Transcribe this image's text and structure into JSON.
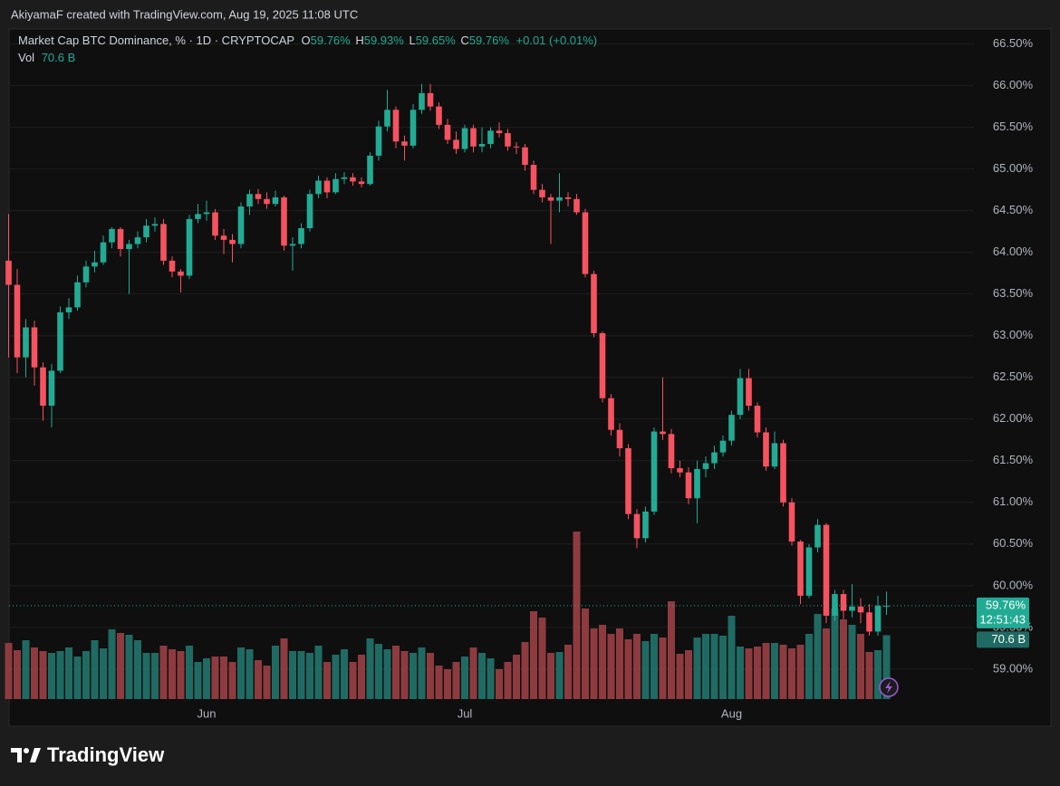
{
  "header": {
    "attribution": "AkiyamaF created with TradingView.com, Aug 19, 2025 11:08 UTC"
  },
  "footer": {
    "brand": "TradingView"
  },
  "chart_data": {
    "type": "candlestick",
    "title": "Market Cap BTC Dominance, % · 1D · CRYPTOCAP",
    "legend": {
      "o_label": "O",
      "o": "59.76%",
      "h_label": "H",
      "h": "59.93%",
      "l_label": "L",
      "l": "59.65%",
      "c_label": "C",
      "c": "59.76%",
      "change": "+0.01 (+0.01%)",
      "vol_label": "Vol",
      "vol": "70.6 B"
    },
    "last_price_label": "59.76%",
    "countdown": "12:51:43",
    "volume_tag": "70.6 B",
    "categories": [
      null,
      null,
      null,
      null,
      null,
      null,
      null,
      null,
      null,
      null,
      null,
      null,
      null,
      null,
      null,
      null,
      null,
      null,
      null,
      null,
      null,
      null,
      null,
      "Jun",
      null,
      null,
      null,
      null,
      null,
      null,
      null,
      null,
      null,
      null,
      null,
      null,
      null,
      null,
      null,
      null,
      null,
      null,
      null,
      null,
      null,
      null,
      null,
      null,
      null,
      null,
      null,
      null,
      null,
      "Jul",
      null,
      null,
      null,
      null,
      null,
      null,
      null,
      null,
      null,
      null,
      null,
      null,
      null,
      null,
      null,
      null,
      null,
      null,
      null,
      null,
      null,
      null,
      null,
      null,
      null,
      null,
      null,
      null,
      null,
      null,
      "Aug",
      null,
      null,
      null,
      null,
      null,
      null,
      null,
      null,
      null,
      null,
      null,
      null,
      null,
      null,
      null,
      null,
      null,
      null
    ],
    "open": [
      63.9,
      63.61,
      62.74,
      63.1,
      62.62,
      62.16,
      62.58,
      63.28,
      63.34,
      63.64,
      63.83,
      63.88,
      64.12,
      64.28,
      64.04,
      64.1,
      64.18,
      64.32,
      64.34,
      63.9,
      63.77,
      63.72,
      64.4,
      64.46,
      64.48,
      64.2,
      64.15,
      64.1,
      64.55,
      64.7,
      64.64,
      64.58,
      64.66,
      64.08,
      64.1,
      64.29,
      64.7,
      64.86,
      64.72,
      64.88,
      64.9,
      64.85,
      64.82,
      65.16,
      65.51,
      65.71,
      65.33,
      65.28,
      65.71,
      65.91,
      65.75,
      65.53,
      65.35,
      65.24,
      65.49,
      65.27,
      65.3,
      65.46,
      65.43,
      65.27,
      65.26,
      65.05,
      64.75,
      64.66,
      64.62,
      64.66,
      64.64,
      64.48,
      63.74,
      63.03,
      62.25,
      61.87,
      61.65,
      60.86,
      60.57,
      60.89,
      61.85,
      61.82,
      61.41,
      61.36,
      61.05,
      61.4,
      61.47,
      61.6,
      61.74,
      62.05,
      62.49,
      62.16,
      61.84,
      61.43,
      61.71,
      61.0,
      60.53,
      59.88,
      60.46,
      60.73,
      59.64,
      59.9,
      59.7,
      59.75,
      59.68,
      59.45,
      59.76
    ],
    "high": [
      64.46,
      63.8,
      63.2,
      63.18,
      62.68,
      62.66,
      63.35,
      63.45,
      63.72,
      63.9,
      64.02,
      64.2,
      64.3,
      64.3,
      64.15,
      64.25,
      64.4,
      64.42,
      64.4,
      63.95,
      63.8,
      64.45,
      64.58,
      64.62,
      64.52,
      64.28,
      64.22,
      64.6,
      64.75,
      64.76,
      64.72,
      64.74,
      64.68,
      64.18,
      64.35,
      64.75,
      64.92,
      64.9,
      64.95,
      64.96,
      64.95,
      64.9,
      65.2,
      65.58,
      65.95,
      65.75,
      65.4,
      65.78,
      66.02,
      66.02,
      65.8,
      65.6,
      65.45,
      65.53,
      65.53,
      65.5,
      65.5,
      65.56,
      65.48,
      65.32,
      65.3,
      65.1,
      64.82,
      64.7,
      64.95,
      64.72,
      64.7,
      64.52,
      63.78,
      63.05,
      62.3,
      61.95,
      61.7,
      60.92,
      60.95,
      61.9,
      62.5,
      61.88,
      61.5,
      61.42,
      61.5,
      61.55,
      61.68,
      61.8,
      62.1,
      62.6,
      62.6,
      62.2,
      61.9,
      61.85,
      61.75,
      61.05,
      60.55,
      60.5,
      60.8,
      60.75,
      59.95,
      59.95,
      60.02,
      59.85,
      59.78,
      59.88,
      59.93
    ],
    "low": [
      62.74,
      62.55,
      62.5,
      62.4,
      61.98,
      61.9,
      62.55,
      63.2,
      63.3,
      63.58,
      63.76,
      63.85,
      64.05,
      63.95,
      63.5,
      64.05,
      64.12,
      64.25,
      63.85,
      63.7,
      63.52,
      63.68,
      64.35,
      64.38,
      64.15,
      63.98,
      63.88,
      64.05,
      64.45,
      64.58,
      64.52,
      64.55,
      64.02,
      63.78,
      64.05,
      64.25,
      64.65,
      64.65,
      64.7,
      64.82,
      64.8,
      64.78,
      64.8,
      65.1,
      65.45,
      65.25,
      65.1,
      65.25,
      65.66,
      65.7,
      65.48,
      65.3,
      65.18,
      65.2,
      65.2,
      65.2,
      65.25,
      65.38,
      65.22,
      65.18,
      64.98,
      64.7,
      64.6,
      64.1,
      64.48,
      64.55,
      64.45,
      63.7,
      62.98,
      62.2,
      61.8,
      61.55,
      60.8,
      60.45,
      60.52,
      60.85,
      61.75,
      61.35,
      61.3,
      60.98,
      60.75,
      61.3,
      61.4,
      61.55,
      61.68,
      62.0,
      62.1,
      61.78,
      61.38,
      61.4,
      60.95,
      60.48,
      59.78,
      59.85,
      60.4,
      59.55,
      59.58,
      59.6,
      59.62,
      59.55,
      59.4,
      59.4,
      59.65
    ],
    "close": [
      63.61,
      62.74,
      63.1,
      62.62,
      62.16,
      62.58,
      63.28,
      63.34,
      63.64,
      63.83,
      63.88,
      64.12,
      64.28,
      64.04,
      64.1,
      64.18,
      64.32,
      64.34,
      63.9,
      63.77,
      63.72,
      64.4,
      64.46,
      64.48,
      64.2,
      64.15,
      64.1,
      64.55,
      64.7,
      64.64,
      64.58,
      64.66,
      64.08,
      64.1,
      64.29,
      64.7,
      64.86,
      64.72,
      64.88,
      64.9,
      64.85,
      64.82,
      65.16,
      65.51,
      65.71,
      65.33,
      65.28,
      65.71,
      65.91,
      65.75,
      65.53,
      65.35,
      65.24,
      65.49,
      65.27,
      65.3,
      65.46,
      65.43,
      65.27,
      65.26,
      65.05,
      64.75,
      64.66,
      64.62,
      64.66,
      64.64,
      64.48,
      63.74,
      63.03,
      62.25,
      61.87,
      61.65,
      60.86,
      60.57,
      60.89,
      61.85,
      61.82,
      61.41,
      61.36,
      61.05,
      61.4,
      61.47,
      61.6,
      61.74,
      62.05,
      62.49,
      62.16,
      61.84,
      61.43,
      61.71,
      61.0,
      60.53,
      59.88,
      60.46,
      60.73,
      59.64,
      59.9,
      59.7,
      59.75,
      59.68,
      59.45,
      59.76,
      59.76
    ],
    "volume": [
      62,
      54,
      65,
      57,
      53,
      51,
      53,
      57,
      47,
      53,
      65,
      56,
      77,
      73,
      71,
      65,
      51,
      51,
      59,
      55,
      53,
      59,
      41,
      45,
      47,
      47,
      41,
      57,
      55,
      43,
      37,
      59,
      67,
      53,
      53,
      51,
      59,
      41,
      49,
      55,
      41,
      49,
      67,
      61,
      55,
      59,
      53,
      51,
      57,
      51,
      37,
      33,
      41,
      47,
      57,
      51,
      45,
      33,
      41,
      49,
      63,
      97,
      90,
      51,
      52,
      60,
      185,
      100,
      78,
      82,
      72,
      78,
      66,
      72,
      64,
      72,
      68,
      108,
      50,
      54,
      68,
      72,
      72,
      70,
      92,
      58,
      56,
      58,
      62,
      62,
      60,
      56,
      60,
      72,
      94,
      78,
      100,
      88,
      82,
      72,
      52,
      54,
      70.6
    ],
    "up_color": "#22ab94",
    "down_color": "#f7525f",
    "up_volume_color": "#1f6b63",
    "down_volume_color": "#8e3b3f",
    "ylim": [
      58.64,
      66.68
    ],
    "yticks": [
      {
        "value": 59,
        "label": "59.00%"
      },
      {
        "value": 59.5,
        "label": "59.50%"
      },
      {
        "value": 60,
        "label": "60.00%"
      },
      {
        "value": 60.5,
        "label": "60.50%"
      },
      {
        "value": 61,
        "label": "61.00%"
      },
      {
        "value": 61.5,
        "label": "61.50%"
      },
      {
        "value": 62,
        "label": "62.00%"
      },
      {
        "value": 62.5,
        "label": "62.50%"
      },
      {
        "value": 63,
        "label": "63.00%"
      },
      {
        "value": 63.5,
        "label": "63.50%"
      },
      {
        "value": 64,
        "label": "64.00%"
      },
      {
        "value": 64.5,
        "label": "64.50%"
      },
      {
        "value": 65,
        "label": "65.00%"
      },
      {
        "value": 65.5,
        "label": "65.50%"
      },
      {
        "value": 66,
        "label": "66.00%"
      },
      {
        "value": 66.5,
        "label": "66.50%"
      }
    ],
    "grid": true
  }
}
